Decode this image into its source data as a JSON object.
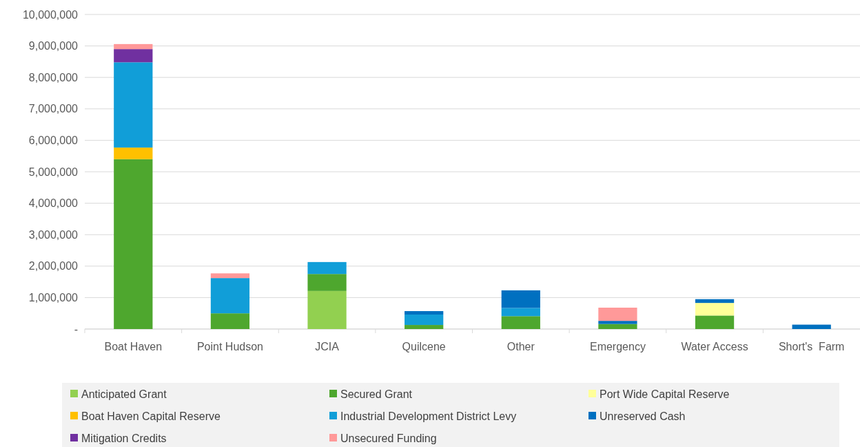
{
  "chart_data": {
    "type": "bar",
    "stacked": true,
    "categories": [
      "Boat Haven",
      "Point Hudson",
      "JCIA",
      "Quilcene",
      "Other",
      "Emergency",
      "Water Access",
      "Short's  Farm"
    ],
    "series": [
      {
        "name": "Anticipated Grant",
        "color": "#92d050",
        "values": [
          null,
          null,
          1210000,
          null,
          null,
          null,
          null,
          null
        ]
      },
      {
        "name": "Secured Grant",
        "color": "#4ea72e",
        "values": [
          5400000,
          500000,
          540000,
          130000,
          410000,
          160000,
          430000,
          null
        ]
      },
      {
        "name": "Port Wide Capital Reserve",
        "color": "#ffff99",
        "values": [
          null,
          null,
          null,
          null,
          null,
          null,
          400000,
          null
        ]
      },
      {
        "name": "Boat Haven Capital Reserve",
        "color": "#ffc000",
        "values": [
          370000,
          null,
          null,
          null,
          null,
          null,
          null,
          null
        ]
      },
      {
        "name": "Industrial Development District Levy",
        "color": "#119ed8",
        "values": [
          2710000,
          1120000,
          380000,
          330000,
          260000,
          null,
          null,
          null
        ]
      },
      {
        "name": "Unreserved Cash",
        "color": "#0070c0",
        "values": [
          null,
          null,
          null,
          110000,
          560000,
          100000,
          120000,
          140000
        ]
      },
      {
        "name": "Mitigation Credits",
        "color": "#7030a0",
        "values": [
          420000,
          null,
          null,
          null,
          null,
          null,
          null,
          null
        ]
      },
      {
        "name": "Unsecured Funding",
        "color": "#ff9999",
        "values": [
          160000,
          150000,
          null,
          null,
          null,
          420000,
          null,
          null
        ]
      }
    ],
    "ylim": [
      0,
      10000000
    ],
    "yticks": [
      {
        "value": 0,
        "label": "-"
      },
      {
        "value": 1000000,
        "label": "1,000,000"
      },
      {
        "value": 2000000,
        "label": "2,000,000"
      },
      {
        "value": 3000000,
        "label": "3,000,000"
      },
      {
        "value": 4000000,
        "label": "4,000,000"
      },
      {
        "value": 5000000,
        "label": "5,000,000"
      },
      {
        "value": 6000000,
        "label": "6,000,000"
      },
      {
        "value": 7000000,
        "label": "7,000,000"
      },
      {
        "value": 8000000,
        "label": "8,000,000"
      },
      {
        "value": 9000000,
        "label": "9,000,000"
      },
      {
        "value": 10000000,
        "label": "10,000,000"
      }
    ],
    "grid": "y",
    "legend": "bottom"
  }
}
